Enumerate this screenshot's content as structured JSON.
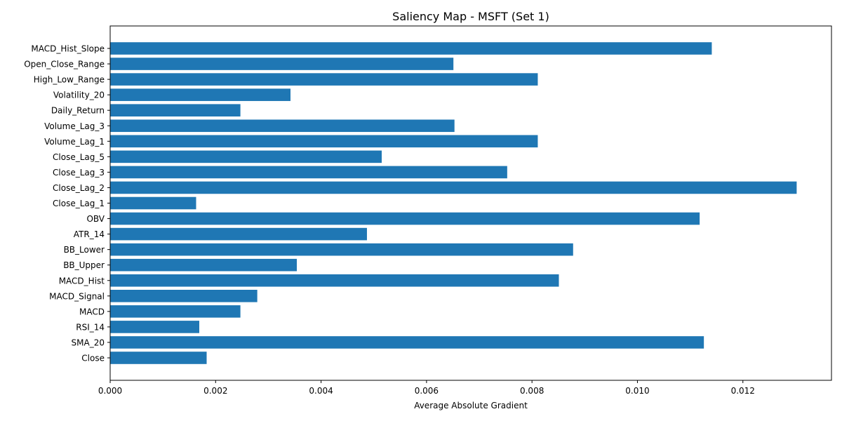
{
  "chart_data": {
    "type": "bar",
    "orientation": "horizontal",
    "title": "Saliency Map - MSFT (Set 1)",
    "xlabel": "Average Absolute Gradient",
    "ylabel": "",
    "xlim": [
      0,
      0.01368
    ],
    "xticks": [
      0.0,
      0.002,
      0.004,
      0.006,
      0.008,
      0.01,
      0.012
    ],
    "xtick_labels": [
      "0.000",
      "0.002",
      "0.004",
      "0.006",
      "0.008",
      "0.010",
      "0.012"
    ],
    "categories": [
      "Close",
      "SMA_20",
      "RSI_14",
      "MACD",
      "MACD_Signal",
      "MACD_Hist",
      "BB_Upper",
      "BB_Lower",
      "ATR_14",
      "OBV",
      "Close_Lag_1",
      "Close_Lag_2",
      "Close_Lag_3",
      "Close_Lag_5",
      "Volume_Lag_1",
      "Volume_Lag_3",
      "Daily_Return",
      "Volatility_20",
      "High_Low_Range",
      "Open_Close_Range",
      "MACD_Hist_Slope"
    ],
    "values": [
      0.00183,
      0.01126,
      0.00169,
      0.00247,
      0.00279,
      0.00851,
      0.00354,
      0.00878,
      0.00487,
      0.01118,
      0.00163,
      0.01302,
      0.00753,
      0.00515,
      0.00811,
      0.00653,
      0.00247,
      0.00342,
      0.00811,
      0.00651,
      0.01141
    ],
    "bar_color": "#1f77b4",
    "grid": false,
    "legend": "none"
  }
}
